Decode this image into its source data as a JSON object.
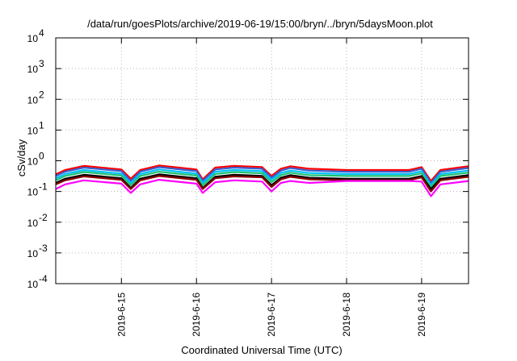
{
  "chart_data": {
    "type": "line",
    "title": "/data/run/goesPlots/archive/2019-06-19/15:00/bryn/../bryn/5daysMoon.plot",
    "xlabel": "Coordinated Universal Time (UTC)",
    "ylabel": "cSv/day",
    "y_scale": "log",
    "ylim": [
      0.0001,
      10000
    ],
    "y_ticks": [
      {
        "value": 0.0001,
        "base": "10",
        "exp": "-4"
      },
      {
        "value": 0.001,
        "base": "10",
        "exp": "-3"
      },
      {
        "value": 0.01,
        "base": "10",
        "exp": "-2"
      },
      {
        "value": 0.1,
        "base": "10",
        "exp": "-1"
      },
      {
        "value": 1,
        "base": "10",
        "exp": "0"
      },
      {
        "value": 10,
        "base": "10",
        "exp": "1"
      },
      {
        "value": 100,
        "base": "10",
        "exp": "2"
      },
      {
        "value": 1000,
        "base": "10",
        "exp": "3"
      },
      {
        "value": 10000,
        "base": "10",
        "exp": "4"
      }
    ],
    "xlim": [
      "2019-06-14 03:00",
      "2019-06-19 15:00"
    ],
    "x_ticks": [
      "2019-6-15",
      "2019-6-16",
      "2019-6-17",
      "2019-6-18",
      "2019-6-19"
    ],
    "grid": true,
    "x": [
      "2019-06-14 03:00",
      "2019-06-14 06:00",
      "2019-06-14 12:00",
      "2019-06-15 00:00",
      "2019-06-15 03:00",
      "2019-06-15 06:00",
      "2019-06-15 12:00",
      "2019-06-16 00:00",
      "2019-06-16 02:00",
      "2019-06-16 06:00",
      "2019-06-16 12:00",
      "2019-06-16 21:00",
      "2019-06-17 00:00",
      "2019-06-17 03:00",
      "2019-06-17 06:00",
      "2019-06-17 12:00",
      "2019-06-18 00:00",
      "2019-06-18 12:00",
      "2019-06-18 20:00",
      "2019-06-19 00:00",
      "2019-06-19 03:00",
      "2019-06-19 06:00",
      "2019-06-19 15:00"
    ],
    "series": [
      {
        "color": "#ff0000",
        "values": [
          0.36,
          0.5,
          0.68,
          0.52,
          0.26,
          0.5,
          0.7,
          0.52,
          0.25,
          0.6,
          0.68,
          0.62,
          0.32,
          0.55,
          0.66,
          0.55,
          0.5,
          0.5,
          0.5,
          0.62,
          0.22,
          0.5,
          0.66
        ]
      },
      {
        "color": "#3a5fcd",
        "values": [
          0.32,
          0.44,
          0.6,
          0.46,
          0.22,
          0.44,
          0.62,
          0.46,
          0.22,
          0.52,
          0.6,
          0.55,
          0.28,
          0.48,
          0.58,
          0.48,
          0.44,
          0.44,
          0.44,
          0.55,
          0.19,
          0.44,
          0.58
        ]
      },
      {
        "color": "#00c0ff",
        "values": [
          0.27,
          0.37,
          0.5,
          0.38,
          0.19,
          0.37,
          0.52,
          0.38,
          0.19,
          0.44,
          0.5,
          0.46,
          0.24,
          0.4,
          0.48,
          0.4,
          0.37,
          0.37,
          0.37,
          0.46,
          0.16,
          0.37,
          0.48
        ]
      },
      {
        "color": "#20c070",
        "values": [
          0.23,
          0.32,
          0.43,
          0.33,
          0.16,
          0.32,
          0.44,
          0.33,
          0.16,
          0.37,
          0.43,
          0.39,
          0.2,
          0.34,
          0.41,
          0.34,
          0.32,
          0.32,
          0.32,
          0.39,
          0.14,
          0.32,
          0.41
        ]
      },
      {
        "color": "#000000",
        "values": [
          0.19,
          0.26,
          0.35,
          0.27,
          0.13,
          0.26,
          0.36,
          0.27,
          0.13,
          0.3,
          0.35,
          0.32,
          0.16,
          0.28,
          0.34,
          0.28,
          0.26,
          0.26,
          0.26,
          0.32,
          0.12,
          0.26,
          0.34
        ]
      },
      {
        "color": "#8b0000",
        "values": [
          0.17,
          0.23,
          0.31,
          0.24,
          0.12,
          0.23,
          0.32,
          0.24,
          0.12,
          0.27,
          0.31,
          0.29,
          0.14,
          0.25,
          0.3,
          0.25,
          0.23,
          0.23,
          0.23,
          0.29,
          0.1,
          0.23,
          0.3
        ]
      },
      {
        "color": "#ff00ff",
        "values": [
          0.12,
          0.17,
          0.23,
          0.18,
          0.09,
          0.17,
          0.24,
          0.18,
          0.09,
          0.2,
          0.23,
          0.21,
          0.1,
          0.19,
          0.22,
          0.19,
          0.22,
          0.22,
          0.22,
          0.21,
          0.07,
          0.17,
          0.22
        ]
      }
    ]
  }
}
